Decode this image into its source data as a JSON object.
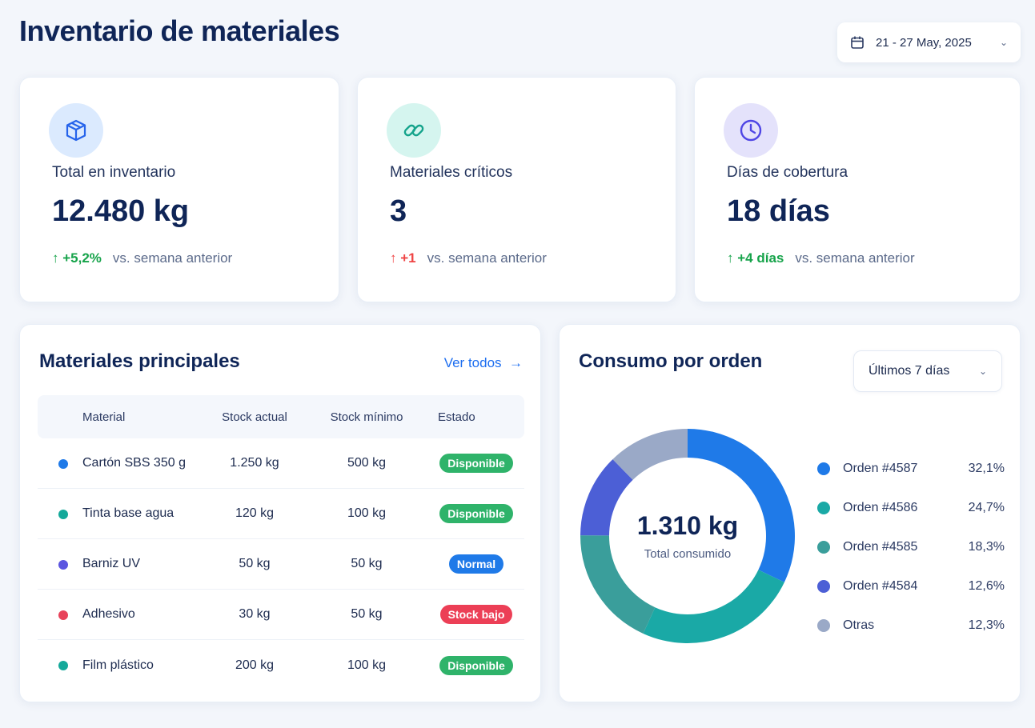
{
  "header": {
    "title": "Inventario de materiales",
    "date_range": "21 - 27 May, 2025"
  },
  "kpis": [
    {
      "label": "Total en inventario",
      "value": "12.480 kg",
      "change": "+5,2%",
      "compare": "vs. semana anterior",
      "icon": "box-icon",
      "trend": "up",
      "trend_color": "#16a34a",
      "icon_bg": "#dbeafe",
      "icon_color": "#2563eb"
    },
    {
      "label": "Materiales críticos",
      "value": "3",
      "change": "+1",
      "compare": "vs. semana anterior",
      "icon": "link-icon",
      "trend": "up",
      "trend_color": "#ef4444",
      "icon_bg": "#d5f5ef",
      "icon_color": "#14a38b"
    },
    {
      "label": "Días de cobertura",
      "value": "18 días",
      "change": "+4 días",
      "compare": "vs. semana anterior",
      "icon": "clock-icon",
      "trend": "up",
      "trend_color": "#16a34a",
      "icon_bg": "#e4e2fb",
      "icon_color": "#4f46e5"
    }
  ],
  "materials": {
    "title": "Materiales principales",
    "see_all": "Ver todos",
    "columns": [
      "Material",
      "Stock actual",
      "Stock mínimo",
      "Estado"
    ],
    "rows": [
      {
        "name": "Cartón SBS 350 g",
        "stock": "1.250 kg",
        "min": "500 kg",
        "status": "Disponible",
        "dot": "#1f7ae8",
        "badge": "#2fb36a"
      },
      {
        "name": "Tinta base agua",
        "stock": "120 kg",
        "min": "100 kg",
        "status": "Disponible",
        "dot": "#14a99a",
        "badge": "#2fb36a"
      },
      {
        "name": "Barniz UV",
        "stock": "50 kg",
        "min": "50 kg",
        "status": "Normal",
        "dot": "#5b55e0",
        "badge": "#1f7ae8"
      },
      {
        "name": "Adhesivo",
        "stock": "30 kg",
        "min": "50 kg",
        "status": "Stock bajo",
        "dot": "#e8435a",
        "badge": "#ec3f56"
      },
      {
        "name": "Film plástico",
        "stock": "200 kg",
        "min": "100 kg",
        "status": "Disponible",
        "dot": "#14a99a",
        "badge": "#2fb36a"
      }
    ]
  },
  "consumption": {
    "title": "Consumo por orden",
    "range": "Últimos 7 días",
    "total": "1.310 kg",
    "total_label": "Total consumido"
  },
  "chart_data": {
    "type": "pie",
    "categories": [
      "Orden #4587",
      "Orden #4586",
      "Orden #4585",
      "Orden #4584",
      "Otras"
    ],
    "values": [
      32.1,
      24.7,
      18.3,
      12.6,
      12.3
    ],
    "value_labels": [
      "32,1%",
      "24,7%",
      "18,3%",
      "12,6%",
      "12,3%"
    ],
    "colors": [
      "#1f7ae8",
      "#1aa9a6",
      "#3a9e9b",
      "#4c5fd6",
      "#9aa9c7"
    ],
    "legend": "right"
  }
}
